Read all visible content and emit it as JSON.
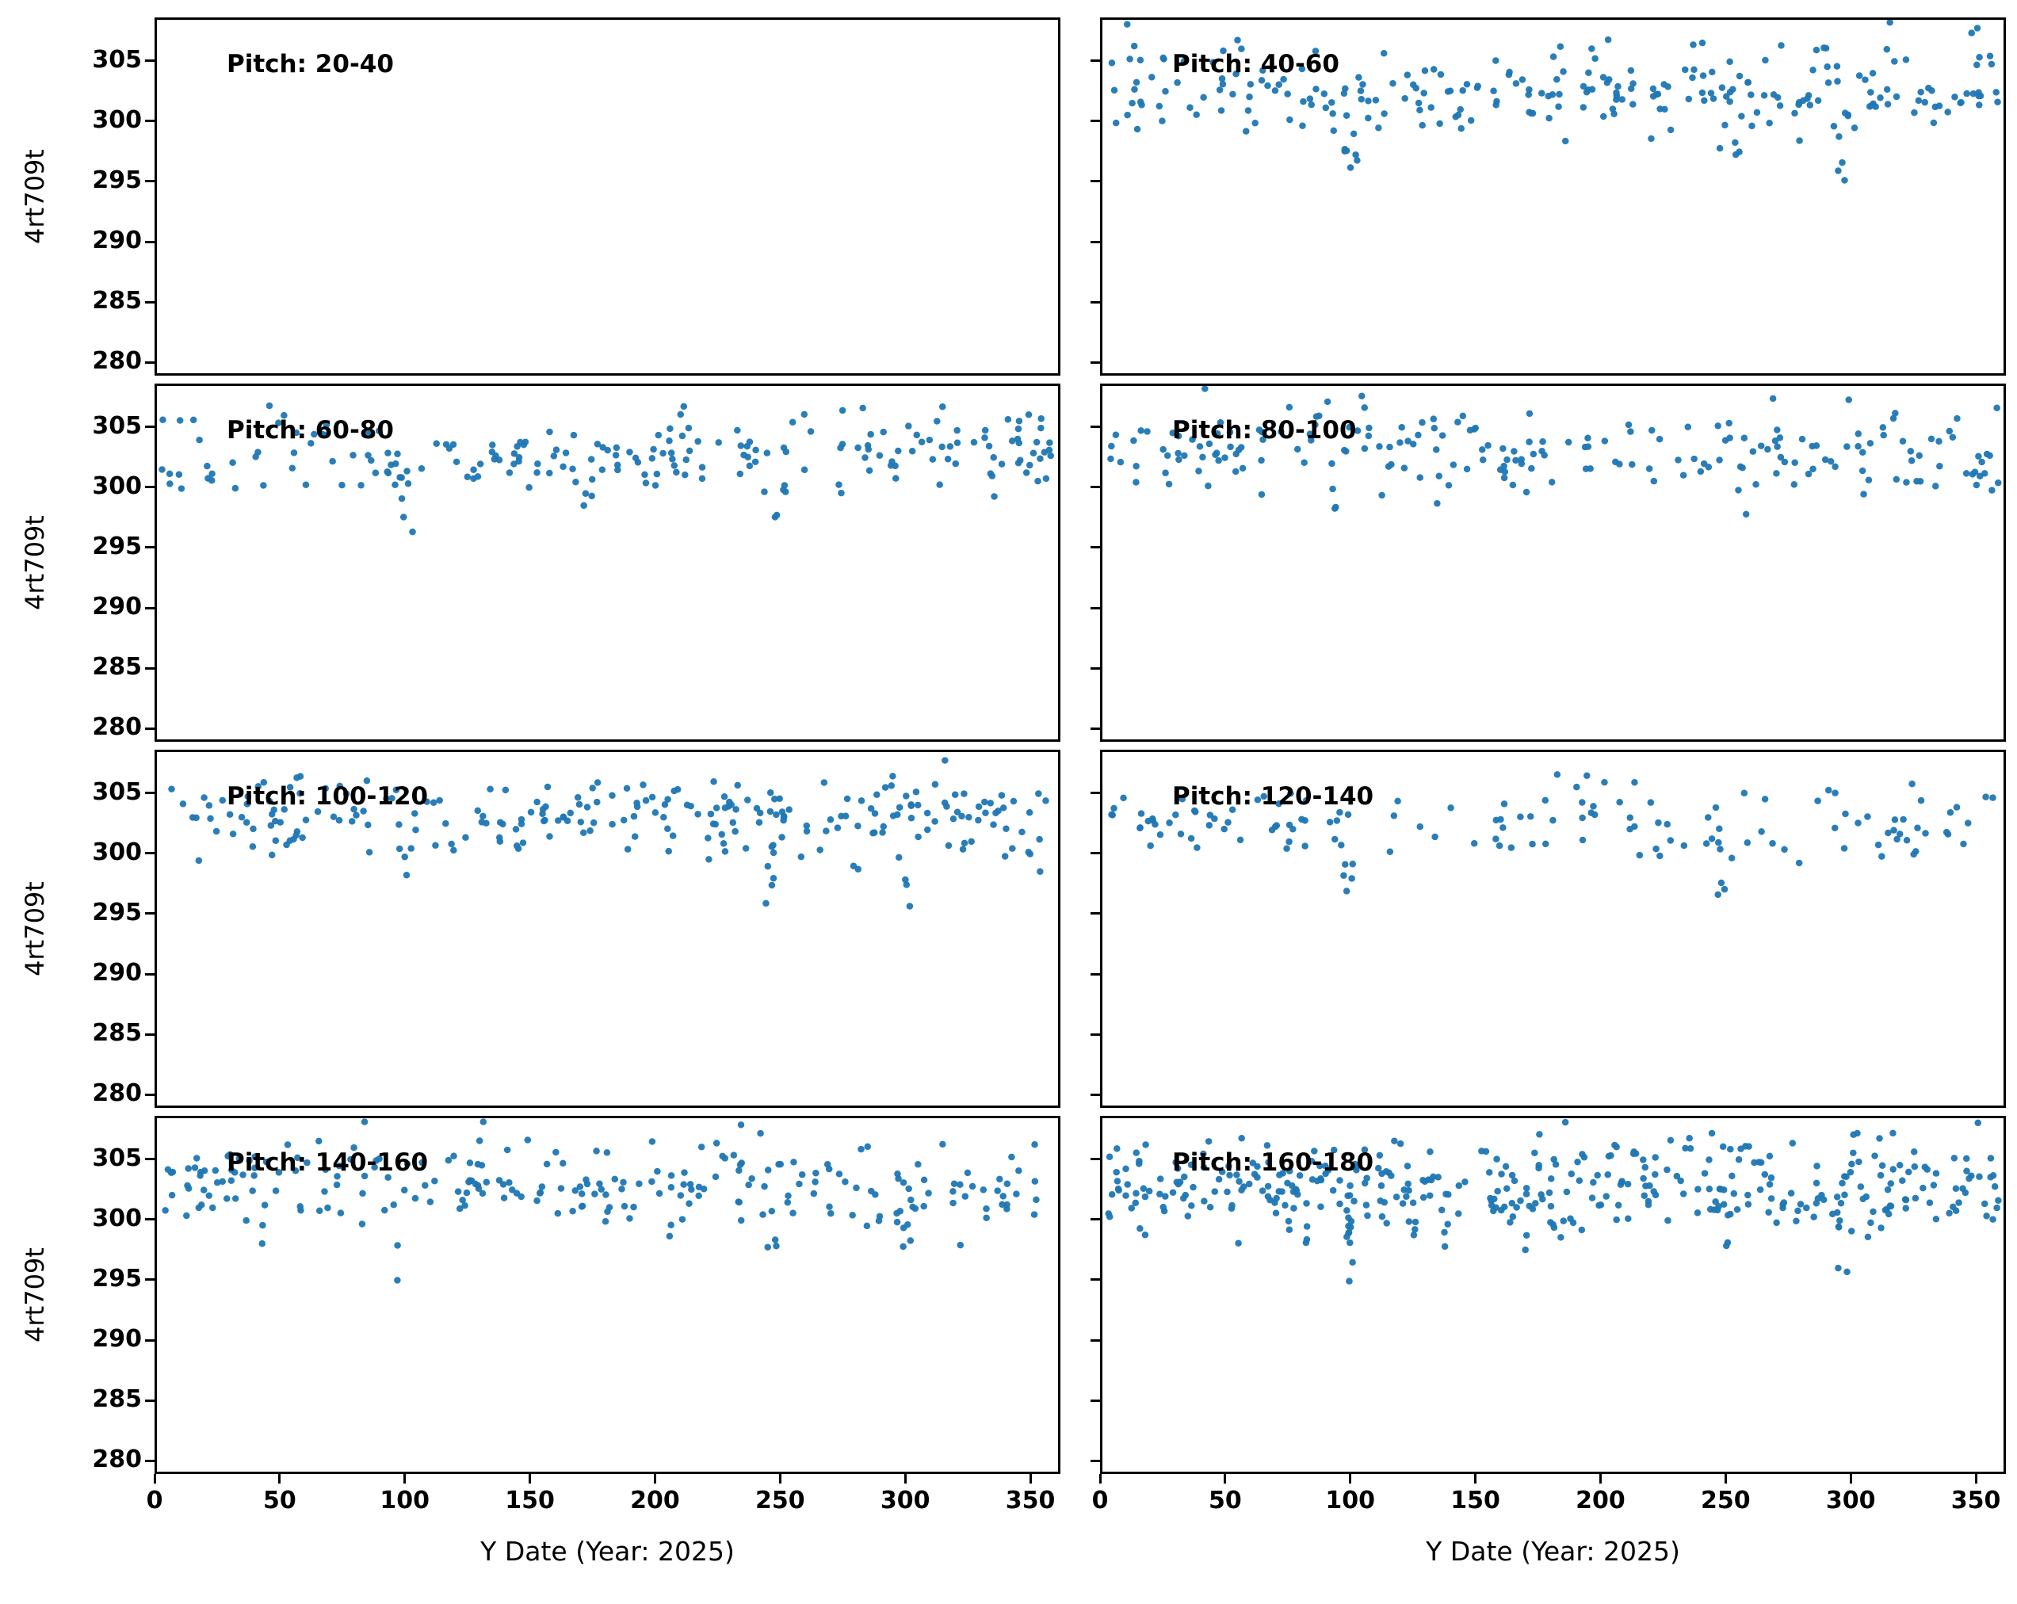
{
  "chart_data": {
    "type": "scatter",
    "title": "",
    "xlabel": "Y Date (Year: 2025)",
    "ylabel": "4rt709t",
    "x_ticks": [
      0,
      50,
      100,
      150,
      200,
      250,
      300,
      350
    ],
    "y_ticks": [
      280,
      285,
      290,
      295,
      300,
      305
    ],
    "x_range": [
      0,
      362
    ],
    "y_range": [
      278.9,
      308.6
    ],
    "grid": false,
    "legend": "none",
    "marker_color": "#1f77b4",
    "layout": "4 rows x 2 columns of subplots, shared axes, y values cluster 298-308 with sparse dips to 293-297 near x=100 and x=300",
    "panels": [
      {
        "label": "Pitch: 20-40",
        "gen": {
          "seed": 101,
          "n": 0,
          "y_mean": 303.0,
          "y_std": 1.9,
          "y_max": 308.3,
          "y_soft_min": 297.8,
          "dips": []
        }
      },
      {
        "label": "Pitch: 40-60",
        "gen": {
          "seed": 202,
          "n": 250,
          "y_mean": 302.7,
          "y_std": 1.9,
          "y_max": 308.4,
          "y_soft_min": 297.6,
          "dips": [
            {
              "x": 100,
              "min": 293.0,
              "n": 8
            },
            {
              "x": 297,
              "min": 294.5,
              "n": 7
            },
            {
              "x": 255,
              "min": 296.8,
              "n": 4
            }
          ]
        }
      },
      {
        "label": "Pitch: 60-80",
        "gen": {
          "seed": 303,
          "n": 205,
          "y_mean": 302.9,
          "y_std": 1.8,
          "y_max": 308.2,
          "y_soft_min": 297.7,
          "dips": [
            {
              "x": 100,
              "min": 296.3,
              "n": 6
            },
            {
              "x": 250,
              "min": 297.2,
              "n": 5
            },
            {
              "x": 172,
              "min": 297.8,
              "n": 4
            }
          ]
        }
      },
      {
        "label": "Pitch: 80-100",
        "gen": {
          "seed": 404,
          "n": 205,
          "y_mean": 303.2,
          "y_std": 1.8,
          "y_max": 308.4,
          "y_soft_min": 297.9,
          "dips": [
            {
              "x": 95,
              "min": 297.8,
              "n": 3
            },
            {
              "x": 258,
              "min": 297.6,
              "n": 2
            },
            {
              "x": 305,
              "min": 298.0,
              "n": 2
            }
          ]
        }
      },
      {
        "label": "Pitch: 100-120",
        "gen": {
          "seed": 505,
          "n": 240,
          "y_mean": 303.1,
          "y_std": 1.8,
          "y_max": 308.4,
          "y_soft_min": 297.8,
          "dips": [
            {
              "x": 100,
              "min": 297.2,
              "n": 4
            },
            {
              "x": 245,
              "min": 295.8,
              "n": 7
            },
            {
              "x": 300,
              "min": 294.8,
              "n": 4
            }
          ]
        }
      },
      {
        "label": "Pitch: 120-140",
        "gen": {
          "seed": 606,
          "n": 135,
          "y_mean": 303.0,
          "y_std": 1.7,
          "y_max": 308.3,
          "y_soft_min": 297.9,
          "dips": [
            {
              "x": 98,
              "min": 294.5,
              "n": 6
            },
            {
              "x": 250,
              "min": 296.6,
              "n": 5
            }
          ]
        }
      },
      {
        "label": "Pitch: 140-160",
        "gen": {
          "seed": 707,
          "n": 240,
          "y_mean": 303.2,
          "y_std": 1.9,
          "y_max": 308.5,
          "y_soft_min": 297.7,
          "dips": [
            {
              "x": 97,
              "min": 293.5,
              "n": 2
            },
            {
              "x": 300,
              "min": 295.6,
              "n": 7
            },
            {
              "x": 247,
              "min": 297.5,
              "n": 3
            }
          ]
        }
      },
      {
        "label": "Pitch: 160-180",
        "gen": {
          "seed": 808,
          "n": 390,
          "y_mean": 302.8,
          "y_std": 2.0,
          "y_max": 308.5,
          "y_soft_min": 297.5,
          "dips": [
            {
              "x": 100,
              "min": 294.2,
              "n": 10
            },
            {
              "x": 298,
              "min": 295.5,
              "n": 6
            },
            {
              "x": 250,
              "min": 297.6,
              "n": 5
            }
          ]
        }
      }
    ]
  }
}
